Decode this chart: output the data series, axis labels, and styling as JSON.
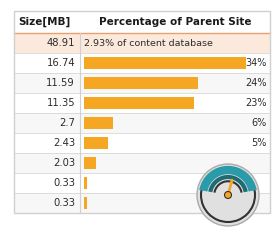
{
  "sizes": [
    "48.91",
    "16.74",
    "11.59",
    "11.35",
    "2.7",
    "2.43",
    "2.03",
    "0.33",
    "0.33"
  ],
  "pct_labels": [
    "2.93% of content database",
    "34%",
    "24%",
    "23%",
    "6%",
    "5%",
    "",
    "",
    ""
  ],
  "bar_values": [
    0,
    34,
    24,
    23,
    6,
    5,
    2.5,
    0.6,
    0.6
  ],
  "bar_color": "#F5A623",
  "row0_bg": "#FBEADC",
  "row_bg_white": "#FFFFFF",
  "row_bg_light": "#F7F7F7",
  "border_color": "#D0D0D0",
  "col_header_1": "Size[MB]",
  "col_header_2": "Percentage of Parent Site",
  "text_color": "#2C2C2C",
  "header_text_color": "#1A1A1A",
  "outer_bg": "#C8C8C8",
  "card_bg": "#FFFFFF",
  "card_border": "#BBBBBB",
  "gauge_bg": "#E0E0E0",
  "gauge_arc_outer": "#2A9BA8",
  "gauge_arc_inner": "#1D6B75",
  "gauge_needle_color": "#F5A623",
  "gauge_border_color": "#333333",
  "gauge_center_color": "#F5A623",
  "max_bar_pct": 34
}
